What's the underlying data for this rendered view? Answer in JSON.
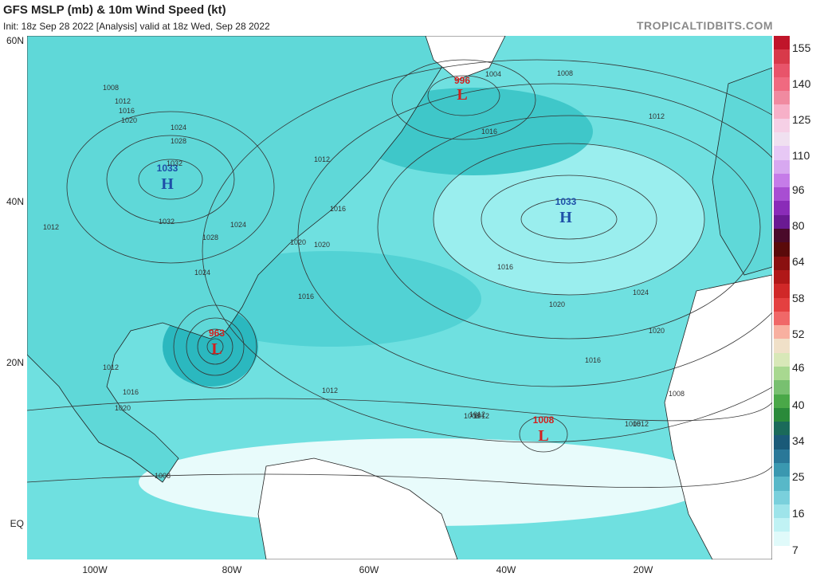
{
  "header": {
    "title": "GFS MSLP (mb) & 10m Wind Speed (kt)",
    "subtitle": "Init: 18z Sep 28 2022  [Analysis]   valid at 18z Wed, Sep 28 2022",
    "brand": "TROPICALTIDBITS.COM"
  },
  "axes": {
    "lat_labels": [
      "60N",
      "40N",
      "20N",
      "EQ"
    ],
    "lon_labels": [
      "100W",
      "80W",
      "60W",
      "40W",
      "20W"
    ]
  },
  "colorbar": {
    "labels": [
      "155",
      "140",
      "125",
      "110",
      "96",
      "80",
      "64",
      "58",
      "52",
      "46",
      "40",
      "34",
      "25",
      "16",
      "7"
    ]
  },
  "pressure_centers": [
    {
      "type": "L",
      "value": "996"
    },
    {
      "type": "H",
      "value": "1033"
    },
    {
      "type": "H",
      "value": "1033"
    },
    {
      "type": "L",
      "value": "963"
    },
    {
      "type": "L",
      "value": "1008"
    }
  ],
  "isobar_labels": [
    "1008",
    "1012",
    "1016",
    "1020",
    "1024",
    "1028",
    "1032",
    "1012",
    "1016",
    "1020",
    "1024",
    "1028",
    "1032",
    "1016",
    "1020",
    "1024",
    "1012",
    "1016",
    "1020",
    "1012",
    "1008",
    "1004",
    "1012",
    "1016",
    "1012",
    "1008",
    "1008",
    "1008",
    "1012",
    "1016",
    "1020",
    "1024",
    "1016",
    "1020",
    "1012",
    "1012",
    "1008"
  ],
  "colors": {
    "land": "#ffffff",
    "wind_light": "#7fe6e6",
    "wind_medium": "#3ccccc",
    "wind_strong": "#1aa6b4",
    "low_marker": "#d2201e",
    "high_marker": "#1e4fa8"
  }
}
